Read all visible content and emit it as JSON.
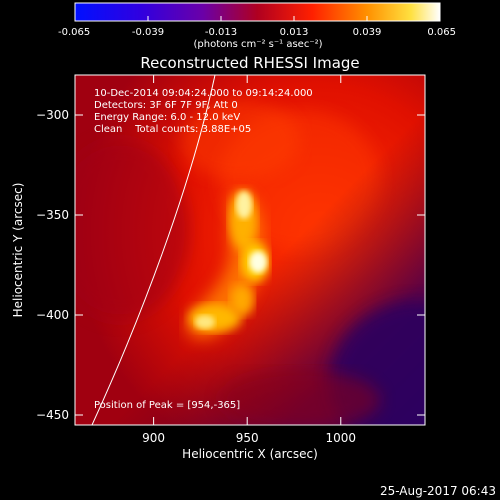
{
  "colorbar": {
    "ticks": [
      "-0.065",
      "-0.039",
      "-0.013",
      "0.013",
      "0.039",
      "0.065"
    ],
    "tick_values": [
      -0.065,
      -0.039,
      -0.013,
      0.013,
      0.039,
      0.065
    ],
    "units_label": "(photons cm⁻² s⁻¹ asec⁻²)",
    "min": -0.065,
    "max": 0.065
  },
  "chart_data": {
    "type": "heatmap",
    "title": "Reconstructed RHESSI Image",
    "xlabel": "Heliocentric X (arcsec)",
    "ylabel": "Heliocentric Y (arcsec)",
    "x_ticks": [
      900,
      950,
      1000
    ],
    "y_ticks": [
      -300,
      -350,
      -400,
      -450
    ],
    "xlim": [
      858,
      1045
    ],
    "ylim": [
      -455,
      -280
    ],
    "info_lines": [
      "10-Dec-2014 09:04:24.000 to 09:14:24.000",
      "Detectors: 3F 6F 7F 9F, Att 0",
      "Energy Range: 6.0 - 12.0 keV",
      "Clean    Total counts: 3.88E+05"
    ],
    "peak_label": "Position of Peak = [954,-365]",
    "peak": [
      954,
      -365
    ],
    "sources": [
      {
        "x": 954,
        "y": -365,
        "intensity": 0.065
      },
      {
        "x": 946,
        "y": -335,
        "intensity": 0.058
      },
      {
        "x": 938,
        "y": -392,
        "intensity": 0.05
      },
      {
        "x": 920,
        "y": -400,
        "intensity": 0.045
      }
    ],
    "limb_arc": {
      "cx": 0,
      "cy": 0,
      "r_arcsec": 992
    }
  },
  "timestamp": "25-Aug-2017 06:43"
}
